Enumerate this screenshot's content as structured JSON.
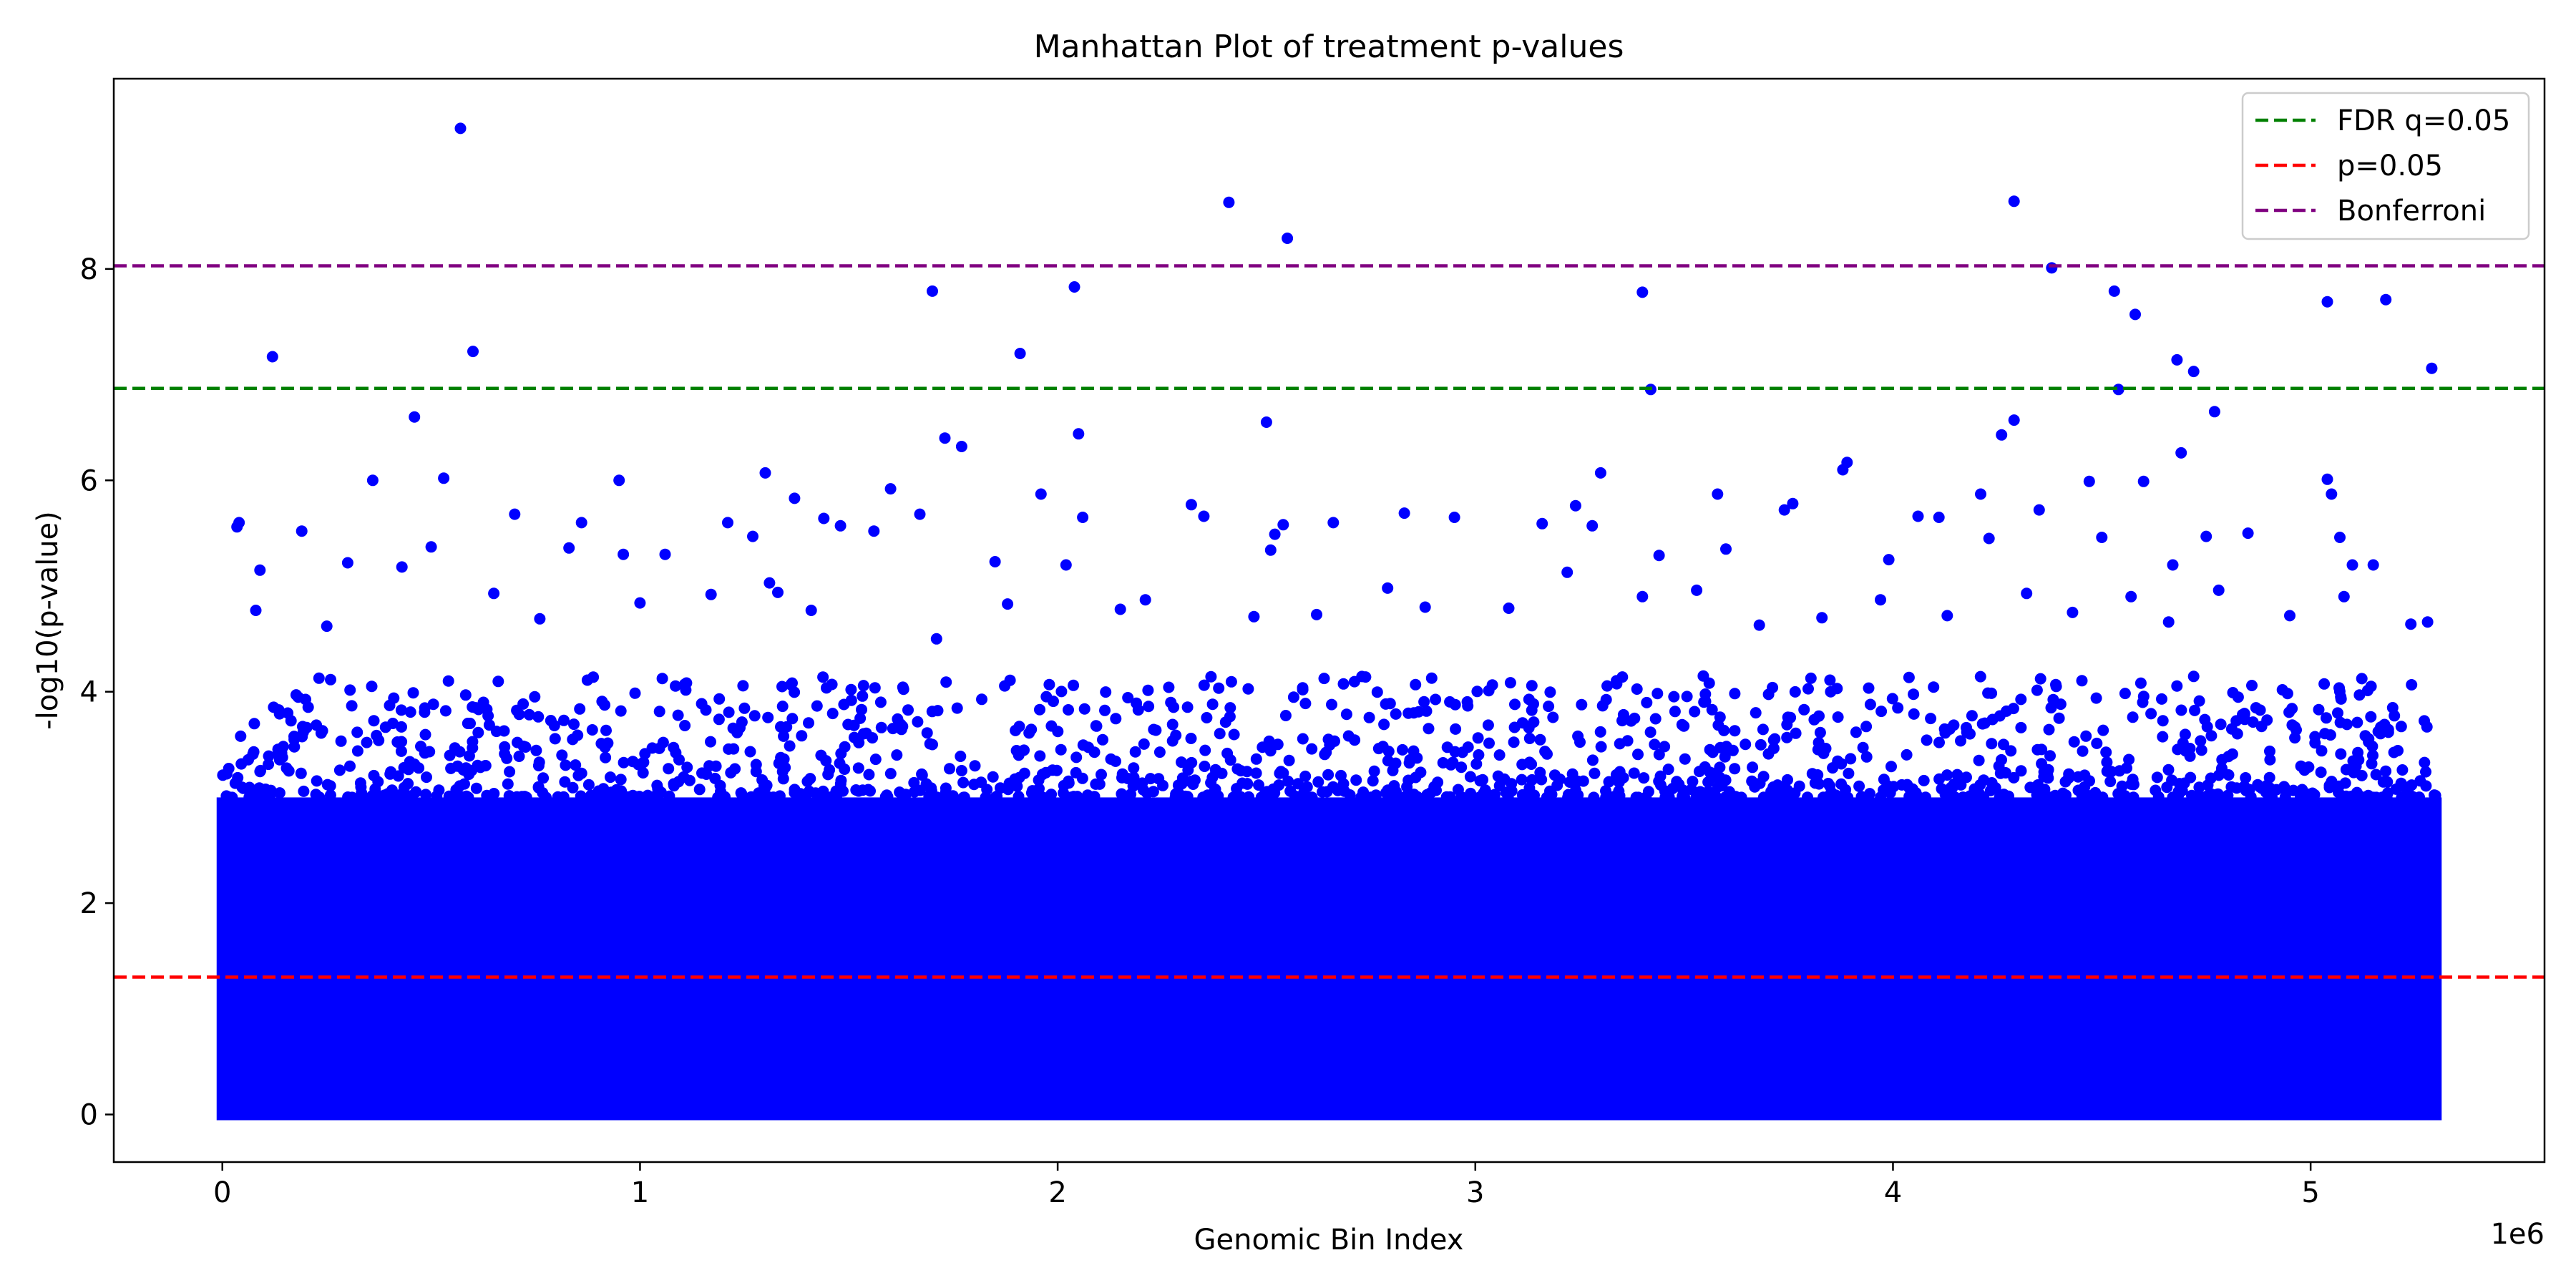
{
  "chart_data": {
    "type": "scatter",
    "title": "Manhattan Plot of treatment p-values",
    "xlabel": "Genomic Bin Index",
    "ylabel": "-log10(p-value)",
    "x_offset_label": "1e6",
    "x_ticks": [
      0,
      1,
      2,
      3,
      4,
      5
    ],
    "y_ticks": [
      0,
      2,
      4,
      6,
      8
    ],
    "xlim": [
      -0.26,
      5.56
    ],
    "ylim": [
      -0.45,
      9.8
    ],
    "x_units": "1e6",
    "grid": false,
    "legend_position": "top-right",
    "point_color": "#0000ff",
    "dense_band": {
      "x_range": [
        0.0,
        5.3
      ],
      "y_range": [
        0,
        3.0
      ],
      "description_color": "#0000ff"
    },
    "thresholds": [
      {
        "name": "FDR q=0.05",
        "y": 6.87,
        "color": "#008000",
        "style": "dashed"
      },
      {
        "name": "p=0.05",
        "y": 1.3,
        "color": "#ff0000",
        "style": "dashed"
      },
      {
        "name": "Bonferroni",
        "y": 8.03,
        "color": "#800080",
        "style": "dashed"
      }
    ],
    "points": [
      [
        0.57,
        9.33
      ],
      [
        2.41,
        8.63
      ],
      [
        2.55,
        8.29
      ],
      [
        4.29,
        8.64
      ],
      [
        4.38,
        8.01
      ],
      [
        0.12,
        7.17
      ],
      [
        0.6,
        7.22
      ],
      [
        1.7,
        7.79
      ],
      [
        1.91,
        7.2
      ],
      [
        2.04,
        7.83
      ],
      [
        3.4,
        7.78
      ],
      [
        3.42,
        6.86
      ],
      [
        4.53,
        7.79
      ],
      [
        4.54,
        6.86
      ],
      [
        4.58,
        7.57
      ],
      [
        4.68,
        7.14
      ],
      [
        4.72,
        7.03
      ],
      [
        5.04,
        7.69
      ],
      [
        5.18,
        7.71
      ],
      [
        5.29,
        7.06
      ],
      [
        0.46,
        6.6
      ],
      [
        2.5,
        6.55
      ],
      [
        1.73,
        6.4
      ],
      [
        1.77,
        6.32
      ],
      [
        2.05,
        6.44
      ],
      [
        4.26,
        6.43
      ],
      [
        4.29,
        6.57
      ],
      [
        4.69,
        6.26
      ],
      [
        4.77,
        6.65
      ],
      [
        3.88,
        6.1
      ],
      [
        3.89,
        6.17
      ],
      [
        0.53,
        6.02
      ],
      [
        0.36,
        6.0
      ],
      [
        0.95,
        6.0
      ],
      [
        1.3,
        6.07
      ],
      [
        1.6,
        5.92
      ],
      [
        1.96,
        5.87
      ],
      [
        3.3,
        6.07
      ],
      [
        3.58,
        5.87
      ],
      [
        4.47,
        5.99
      ],
      [
        4.6,
        5.99
      ],
      [
        5.04,
        6.01
      ],
      [
        5.05,
        5.87
      ],
      [
        0.04,
        5.6
      ],
      [
        0.035,
        5.56
      ],
      [
        0.19,
        5.52
      ],
      [
        0.09,
        5.15
      ],
      [
        0.3,
        5.22
      ],
      [
        0.43,
        5.18
      ],
      [
        0.5,
        5.37
      ],
      [
        0.7,
        5.68
      ],
      [
        0.83,
        5.36
      ],
      [
        0.86,
        5.6
      ],
      [
        0.96,
        5.3
      ],
      [
        1.06,
        5.3
      ],
      [
        1.21,
        5.6
      ],
      [
        1.27,
        5.47
      ],
      [
        1.31,
        5.03
      ],
      [
        1.37,
        5.83
      ],
      [
        1.44,
        5.64
      ],
      [
        1.48,
        5.57
      ],
      [
        1.56,
        5.52
      ],
      [
        1.67,
        5.68
      ],
      [
        1.85,
        5.23
      ],
      [
        2.02,
        5.2
      ],
      [
        2.06,
        5.65
      ],
      [
        2.32,
        5.77
      ],
      [
        2.35,
        5.66
      ],
      [
        2.51,
        5.34
      ],
      [
        2.52,
        5.49
      ],
      [
        2.54,
        5.58
      ],
      [
        2.66,
        5.6
      ],
      [
        2.83,
        5.69
      ],
      [
        2.95,
        5.65
      ],
      [
        3.16,
        5.59
      ],
      [
        3.22,
        5.13
      ],
      [
        3.24,
        5.76
      ],
      [
        3.28,
        5.57
      ],
      [
        3.44,
        5.29
      ],
      [
        3.6,
        5.35
      ],
      [
        3.74,
        5.72
      ],
      [
        3.76,
        5.78
      ],
      [
        3.99,
        5.25
      ],
      [
        4.06,
        5.66
      ],
      [
        4.11,
        5.65
      ],
      [
        4.21,
        5.87
      ],
      [
        4.23,
        5.45
      ],
      [
        4.35,
        5.72
      ],
      [
        4.5,
        5.46
      ],
      [
        4.67,
        5.2
      ],
      [
        4.75,
        5.47
      ],
      [
        4.85,
        5.5
      ],
      [
        5.07,
        5.46
      ],
      [
        5.1,
        5.2
      ],
      [
        5.15,
        5.2
      ],
      [
        0.08,
        4.77
      ],
      [
        0.25,
        4.62
      ],
      [
        0.65,
        4.93
      ],
      [
        0.76,
        4.69
      ],
      [
        1.0,
        4.84
      ],
      [
        1.17,
        4.92
      ],
      [
        1.33,
        4.94
      ],
      [
        1.41,
        4.77
      ],
      [
        1.71,
        4.5
      ],
      [
        1.88,
        4.83
      ],
      [
        2.15,
        4.78
      ],
      [
        2.21,
        4.87
      ],
      [
        2.47,
        4.71
      ],
      [
        2.62,
        4.73
      ],
      [
        2.79,
        4.98
      ],
      [
        2.88,
        4.8
      ],
      [
        3.08,
        4.79
      ],
      [
        3.4,
        4.9
      ],
      [
        3.53,
        4.96
      ],
      [
        3.68,
        4.63
      ],
      [
        3.83,
        4.7
      ],
      [
        3.97,
        4.87
      ],
      [
        4.13,
        4.72
      ],
      [
        4.32,
        4.93
      ],
      [
        4.43,
        4.75
      ],
      [
        4.57,
        4.9
      ],
      [
        4.66,
        4.66
      ],
      [
        4.78,
        4.96
      ],
      [
        4.95,
        4.72
      ],
      [
        5.08,
        4.9
      ],
      [
        5.24,
        4.64
      ],
      [
        5.28,
        4.66
      ]
    ]
  }
}
